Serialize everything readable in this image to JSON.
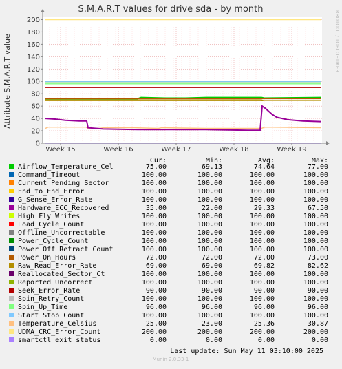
{
  "chart_data": {
    "type": "line",
    "title": "S.M.A.R.T values for drive sda - by month",
    "ylabel": "Attribute S.M.A.R.T value",
    "side_label": "RRDTOOL / TOBI OETIKER",
    "ylim": [
      0,
      205
    ],
    "yticks": [
      0,
      20,
      40,
      60,
      80,
      100,
      120,
      140,
      160,
      180,
      200
    ],
    "x_tick_labels": [
      "Week 15",
      "Week 16",
      "Week 17",
      "Week 18",
      "Week 19"
    ],
    "grid": true,
    "legend": "bottom",
    "columns": [
      "Cur:",
      "Min:",
      "Avg:",
      "Max:"
    ],
    "series": [
      {
        "name": "Airflow_Temperature_Cel",
        "color": "#00cc00",
        "cur": "75.00",
        "min": "69.13",
        "avg": "74.64",
        "max": "77.00"
      },
      {
        "name": "Command_Timeout",
        "color": "#0066b3",
        "cur": "100.00",
        "min": "100.00",
        "avg": "100.00",
        "max": "100.00"
      },
      {
        "name": "Current_Pending_Sector",
        "color": "#ff8000",
        "cur": "100.00",
        "min": "100.00",
        "avg": "100.00",
        "max": "100.00"
      },
      {
        "name": "End_to_End_Error",
        "color": "#ffcc00",
        "cur": "100.00",
        "min": "100.00",
        "avg": "100.00",
        "max": "100.00"
      },
      {
        "name": "G_Sense_Error_Rate",
        "color": "#330099",
        "cur": "100.00",
        "min": "100.00",
        "avg": "100.00",
        "max": "100.00"
      },
      {
        "name": "Hardware_ECC_Recovered",
        "color": "#990099",
        "cur": "35.00",
        "min": "22.00",
        "avg": "29.33",
        "max": "67.50"
      },
      {
        "name": "High_Fly_Writes",
        "color": "#ccff00",
        "cur": "100.00",
        "min": "100.00",
        "avg": "100.00",
        "max": "100.00"
      },
      {
        "name": "Load_Cycle_Count",
        "color": "#ff0000",
        "cur": "100.00",
        "min": "100.00",
        "avg": "100.00",
        "max": "100.00"
      },
      {
        "name": "Offline_Uncorrectable",
        "color": "#808080",
        "cur": "100.00",
        "min": "100.00",
        "avg": "100.00",
        "max": "100.00"
      },
      {
        "name": "Power_Cycle_Count",
        "color": "#008f00",
        "cur": "100.00",
        "min": "100.00",
        "avg": "100.00",
        "max": "100.00"
      },
      {
        "name": "Power_Off_Retract_Count",
        "color": "#00487d",
        "cur": "100.00",
        "min": "100.00",
        "avg": "100.00",
        "max": "100.00"
      },
      {
        "name": "Power_On_Hours",
        "color": "#b35a00",
        "cur": "72.00",
        "min": "72.00",
        "avg": "72.00",
        "max": "73.00"
      },
      {
        "name": "Raw_Read_Error_Rate",
        "color": "#b38f00",
        "cur": "69.00",
        "min": "69.00",
        "avg": "69.82",
        "max": "82.62"
      },
      {
        "name": "Reallocated_Sector_Ct",
        "color": "#6b006b",
        "cur": "100.00",
        "min": "100.00",
        "avg": "100.00",
        "max": "100.00"
      },
      {
        "name": "Reported_Uncorrect",
        "color": "#8fb300",
        "cur": "100.00",
        "min": "100.00",
        "avg": "100.00",
        "max": "100.00"
      },
      {
        "name": "Seek_Error_Rate",
        "color": "#b30000",
        "cur": "90.00",
        "min": "90.00",
        "avg": "90.00",
        "max": "90.00"
      },
      {
        "name": "Spin_Retry_Count",
        "color": "#bebebe",
        "cur": "100.00",
        "min": "100.00",
        "avg": "100.00",
        "max": "100.00"
      },
      {
        "name": "Spin_Up_Time",
        "color": "#80ff80",
        "cur": "96.00",
        "min": "96.00",
        "avg": "96.00",
        "max": "96.00"
      },
      {
        "name": "Start_Stop_Count",
        "color": "#80c9ff",
        "cur": "100.00",
        "min": "100.00",
        "avg": "100.00",
        "max": "100.00"
      },
      {
        "name": "Temperature_Celsius",
        "color": "#ffc080",
        "cur": "25.00",
        "min": "23.00",
        "avg": "25.36",
        "max": "30.87"
      },
      {
        "name": "UDMA_CRC_Error_Count",
        "color": "#ffe680",
        "cur": "200.00",
        "min": "200.00",
        "avg": "200.00",
        "max": "200.00"
      },
      {
        "name": "smartctl_exit_status",
        "color": "#aa80ff",
        "cur": "0.00",
        "min": "0.00",
        "avg": "0.00",
        "max": "0.00"
      }
    ]
  },
  "footer": {
    "last_update": "Last update:  Sun May 11 03:10:00 2025",
    "munin": "Munin 2.0.33-1"
  }
}
